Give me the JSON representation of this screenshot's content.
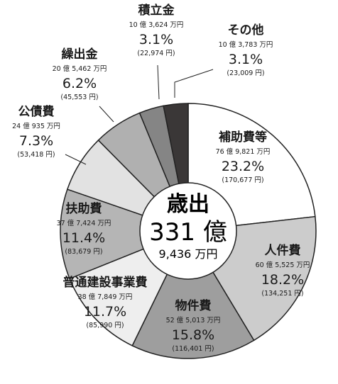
{
  "chart_data": {
    "type": "pie",
    "center_label": {
      "title": "歳出",
      "amount": "331 億",
      "sub": "9,436 万円"
    },
    "slices": [
      {
        "name": "補助費等",
        "amount": "76 億 9,821 万円",
        "value": 23.2,
        "per_capita": "(170,677 円)",
        "color": "#ffffff"
      },
      {
        "name": "人件費",
        "amount": "60 億 5,525 万円",
        "value": 18.2,
        "per_capita": "(134,251 円)",
        "color": "#cccccc"
      },
      {
        "name": "物件費",
        "amount": "52 億 5,013 万円",
        "value": 15.8,
        "per_capita": "(116,401 円)",
        "color": "#9e9e9e"
      },
      {
        "name": "普通建設事業費",
        "amount": "38 億 7,849 万円",
        "value": 11.7,
        "per_capita": "(85,990 円)",
        "color": "#eeeeee"
      },
      {
        "name": "扶助費",
        "amount": "37 億 7,424 万円",
        "value": 11.4,
        "per_capita": "(83,679 円)",
        "color": "#b5b5b5"
      },
      {
        "name": "公債費",
        "amount": "24 億 935 万円",
        "value": 7.3,
        "per_capita": "(53,418 円)",
        "color": "#e2e2e2"
      },
      {
        "name": "繰出金",
        "amount": "20 億 5,462 万円",
        "value": 6.2,
        "per_capita": "(45,553 円)",
        "color": "#b0b0b0"
      },
      {
        "name": "積立金",
        "amount": "10 億 3,624 万円",
        "value": 3.1,
        "per_capita": "(22,974 円)",
        "color": "#858585"
      },
      {
        "name": "その他",
        "amount": "10 億 3,783 万円",
        "value": 3.1,
        "per_capita": "(23,009 円)",
        "color": "#3a3737"
      }
    ]
  }
}
